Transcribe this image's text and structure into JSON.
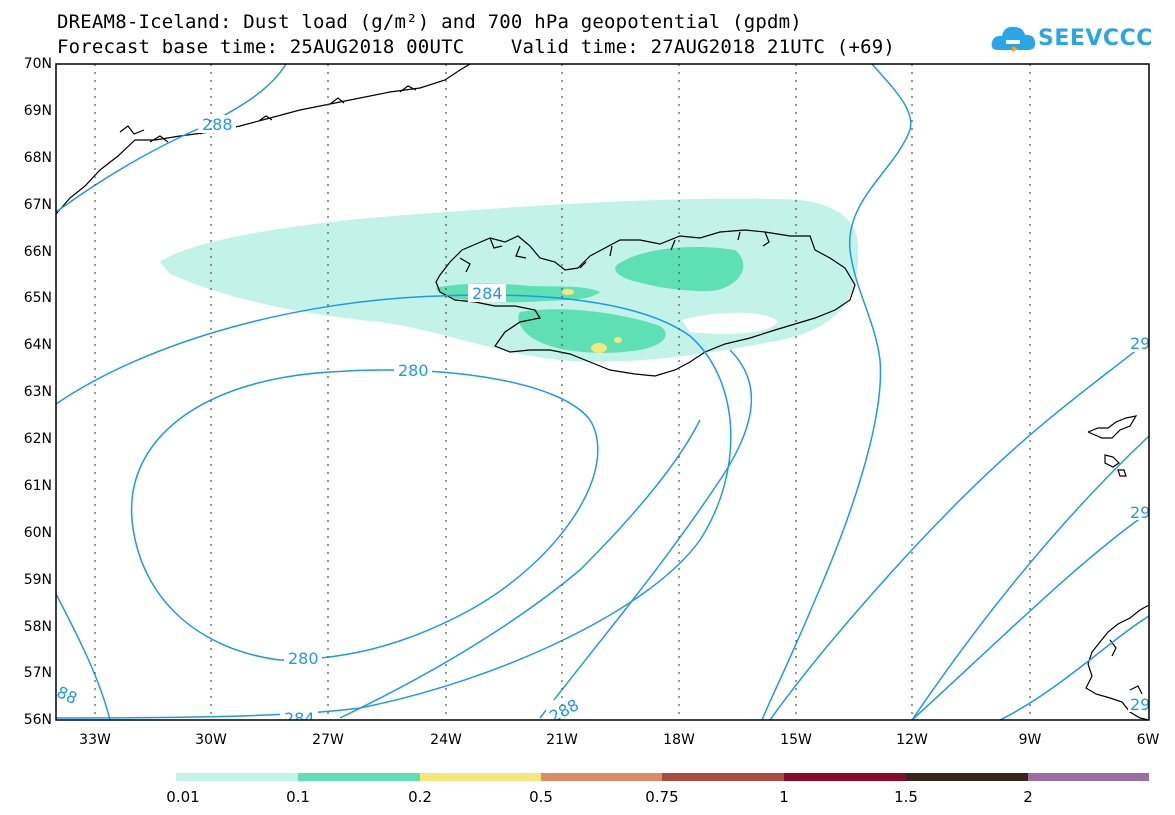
{
  "title_line1": "DREAM8-Iceland: Dust load (g/m²) and 700 hPa geopotential (gpdm)",
  "title_line2": "Forecast base time: 25AUG2018 00UTC    Valid time: 27AUG2018 21UTC (+69)",
  "logo": {
    "text": "SEEVCCC",
    "icon": "cloud-logo-icon",
    "color": "#2aa6e8"
  },
  "map": {
    "lat_labels": [
      "70N",
      "69N",
      "68N",
      "67N",
      "66N",
      "65N",
      "64N",
      "63N",
      "62N",
      "61N",
      "60N",
      "59N",
      "58N",
      "57N",
      "56N"
    ],
    "lon_labels": [
      "33W",
      "30W",
      "27W",
      "24W",
      "21W",
      "18W",
      "15W",
      "12W",
      "9W",
      "6W"
    ],
    "contour_labels": {
      "l288a": "288",
      "l284": "284",
      "l280a": "280",
      "l280b": "280",
      "l284b": "284",
      "l288b": "288",
      "l88": "88",
      "l292a": "29",
      "l292b": "29",
      "l292c": "29"
    },
    "colors": {
      "contour": "#1f9ae8",
      "dust_001": "#c2f2e8",
      "dust_01": "#5fe0b4",
      "dust_02": "#f4e87a"
    }
  },
  "colorbar": {
    "labels": [
      "0.01",
      "0.1",
      "0.2",
      "0.5",
      "0.75",
      "1",
      "1.5",
      "2"
    ],
    "colors": [
      "#c2f2e8",
      "#5fe0b4",
      "#f4e87a",
      "#e08a68",
      "#a84c44",
      "#8a0c2a",
      "#3a2418",
      "#9a6e9e"
    ]
  }
}
